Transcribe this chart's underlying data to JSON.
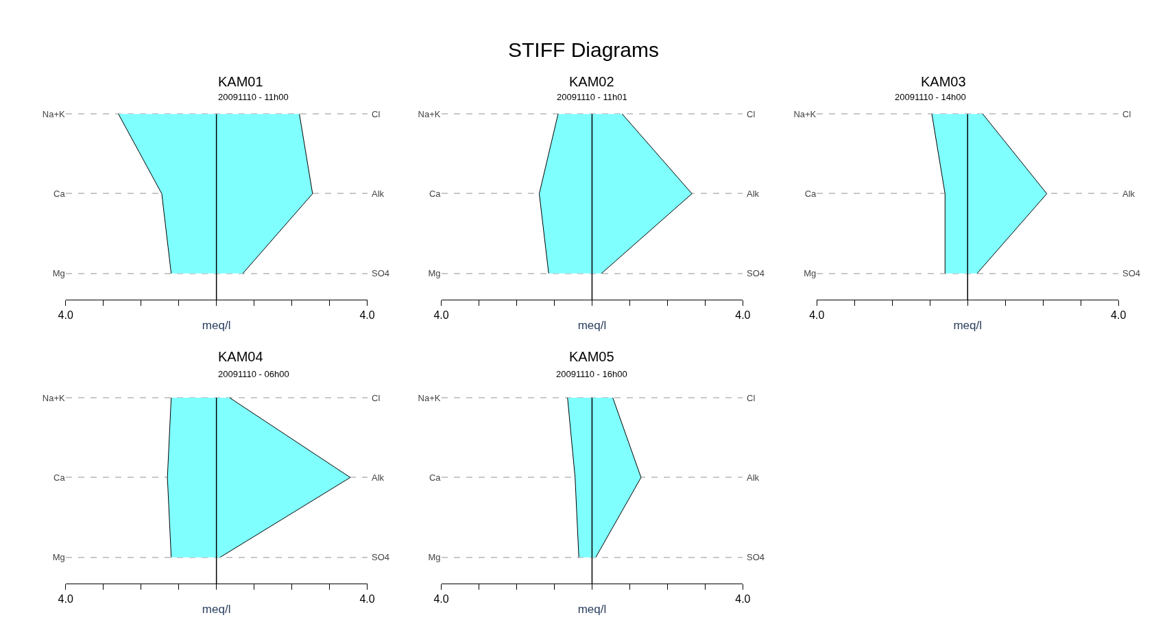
{
  "chart_data": [
    {
      "type": "other",
      "title": "STIFF Diagrams"
    },
    {
      "type": "area",
      "orientation": "horizontal",
      "title": "KAM01",
      "subtitle": "20091110 - 11h00",
      "categories": [
        "Na+K",
        "Ca",
        "Mg"
      ],
      "y2_categories": [
        "Cl",
        "Alk",
        "SO4"
      ],
      "xlabel": "meq/l",
      "xlim": [
        -4,
        4
      ],
      "xticks": [
        {
          "value": -4,
          "label": "4.0"
        },
        {
          "value": -3,
          "label": null
        },
        {
          "value": -2,
          "label": null
        },
        {
          "value": -1,
          "label": null
        },
        {
          "value": 0,
          "label": null
        },
        {
          "value": 1,
          "label": null
        },
        {
          "value": 2,
          "label": null
        },
        {
          "value": 3,
          "label": null
        },
        {
          "value": 4,
          "label": "4.0"
        }
      ],
      "grid": "y",
      "ref_lines": [
        {
          "axis": "x",
          "value": 0
        }
      ],
      "series": [
        {
          "color": "#80ffff",
          "values": [
            -2.6,
            -1.45,
            -1.2
          ]
        },
        {
          "color": "#80ffff",
          "values": [
            2.2,
            2.55,
            0.7
          ]
        }
      ]
    },
    {
      "type": "area",
      "orientation": "horizontal",
      "title": "KAM02",
      "subtitle": "20091110 - 11h01",
      "categories": [
        "Na+K",
        "Ca",
        "Mg"
      ],
      "y2_categories": [
        "Cl",
        "Alk",
        "SO4"
      ],
      "xlabel": "meq/l",
      "xlim": [
        -4,
        4
      ],
      "xticks": [
        {
          "value": -4,
          "label": "4.0"
        },
        {
          "value": -3,
          "label": null
        },
        {
          "value": -2,
          "label": null
        },
        {
          "value": -1,
          "label": null
        },
        {
          "value": 0,
          "label": null
        },
        {
          "value": 1,
          "label": null
        },
        {
          "value": 2,
          "label": null
        },
        {
          "value": 3,
          "label": null
        },
        {
          "value": 4,
          "label": "4.0"
        }
      ],
      "grid": "y",
      "ref_lines": [
        {
          "axis": "x",
          "value": 0
        }
      ],
      "series": [
        {
          "color": "#80ffff",
          "values": [
            -0.9,
            -1.4,
            -1.15
          ]
        },
        {
          "color": "#80ffff",
          "values": [
            0.8,
            2.65,
            0.25
          ]
        }
      ]
    },
    {
      "type": "area",
      "orientation": "horizontal",
      "title": "KAM03",
      "subtitle": "20091110 - 14h00",
      "categories": [
        "Na+K",
        "Ca",
        "Mg"
      ],
      "y2_categories": [
        "Cl",
        "Alk",
        "SO4"
      ],
      "xlabel": "meq/l",
      "xlim": [
        -4,
        4
      ],
      "xticks": [
        {
          "value": -4,
          "label": "4.0"
        },
        {
          "value": -3,
          "label": null
        },
        {
          "value": -2,
          "label": null
        },
        {
          "value": -1,
          "label": null
        },
        {
          "value": 0,
          "label": null
        },
        {
          "value": 1,
          "label": null
        },
        {
          "value": 2,
          "label": null
        },
        {
          "value": 3,
          "label": null
        },
        {
          "value": 4,
          "label": "4.0"
        }
      ],
      "grid": "y",
      "ref_lines": [
        {
          "axis": "x",
          "value": 0
        }
      ],
      "series": [
        {
          "color": "#80ffff",
          "values": [
            -0.95,
            -0.6,
            -0.6
          ]
        },
        {
          "color": "#80ffff",
          "values": [
            0.4,
            2.1,
            0.25
          ]
        }
      ]
    },
    {
      "type": "area",
      "orientation": "horizontal",
      "title": "KAM04",
      "subtitle": "20091110 - 06h00",
      "categories": [
        "Na+K",
        "Ca",
        "Mg"
      ],
      "y2_categories": [
        "Cl",
        "Alk",
        "SO4"
      ],
      "xlabel": "meq/l",
      "xlim": [
        -4,
        4
      ],
      "xticks": [
        {
          "value": -4,
          "label": "4.0"
        },
        {
          "value": -3,
          "label": null
        },
        {
          "value": -2,
          "label": null
        },
        {
          "value": -1,
          "label": null
        },
        {
          "value": 0,
          "label": null
        },
        {
          "value": 1,
          "label": null
        },
        {
          "value": 2,
          "label": null
        },
        {
          "value": 3,
          "label": null
        },
        {
          "value": 4,
          "label": "4.0"
        }
      ],
      "grid": "y",
      "ref_lines": [
        {
          "axis": "x",
          "value": 0
        }
      ],
      "series": [
        {
          "color": "#80ffff",
          "values": [
            -1.2,
            -1.3,
            -1.2
          ]
        },
        {
          "color": "#80ffff",
          "values": [
            0.35,
            3.55,
            0.1
          ]
        }
      ]
    },
    {
      "type": "area",
      "orientation": "horizontal",
      "title": "KAM05",
      "subtitle": "20091110 - 16h00",
      "categories": [
        "Na+K",
        "Ca",
        "Mg"
      ],
      "y2_categories": [
        "Cl",
        "Alk",
        "SO4"
      ],
      "xlabel": "meq/l",
      "xlim": [
        -4,
        4
      ],
      "xticks": [
        {
          "value": -4,
          "label": "4.0"
        },
        {
          "value": -3,
          "label": null
        },
        {
          "value": -2,
          "label": null
        },
        {
          "value": -1,
          "label": null
        },
        {
          "value": 0,
          "label": null
        },
        {
          "value": 1,
          "label": null
        },
        {
          "value": 2,
          "label": null
        },
        {
          "value": 3,
          "label": null
        },
        {
          "value": 4,
          "label": "4.0"
        }
      ],
      "grid": "y",
      "ref_lines": [
        {
          "axis": "x",
          "value": 0
        }
      ],
      "series": [
        {
          "color": "#80ffff",
          "values": [
            -0.65,
            -0.45,
            -0.35
          ]
        },
        {
          "color": "#80ffff",
          "values": [
            0.55,
            1.3,
            0.1
          ]
        }
      ]
    }
  ]
}
